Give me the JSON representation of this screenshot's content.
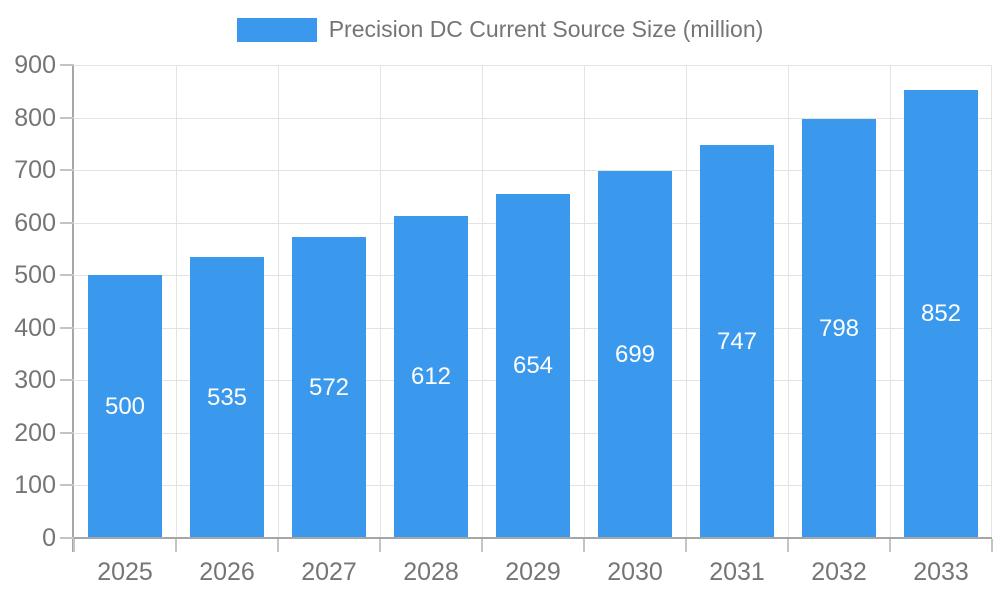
{
  "chart_data": {
    "type": "bar",
    "title": "Precision DC Current Source Size (million)",
    "categories": [
      "2025",
      "2026",
      "2027",
      "2028",
      "2029",
      "2030",
      "2031",
      "2032",
      "2033"
    ],
    "values": [
      500,
      535,
      572,
      612,
      654,
      699,
      747,
      798,
      852
    ],
    "xlabel": "",
    "ylabel": "",
    "ylim": [
      0,
      900
    ],
    "ytick_interval": 100,
    "ytick_labels": [
      "0",
      "100",
      "200",
      "300",
      "400",
      "500",
      "600",
      "700",
      "800",
      "900"
    ],
    "grid": true,
    "legend_position": "top-center",
    "bar_value_labels_inside": true,
    "colors": {
      "bar": "#3a99ec",
      "bar_label_text": "#ffffff",
      "axis_text": "#757575",
      "legend_text": "#757575",
      "grid_line": "#e3e3e3",
      "axis_line": "#a6a6a6",
      "tick_mark": "#c4c4c4",
      "background": "#ffffff"
    }
  }
}
